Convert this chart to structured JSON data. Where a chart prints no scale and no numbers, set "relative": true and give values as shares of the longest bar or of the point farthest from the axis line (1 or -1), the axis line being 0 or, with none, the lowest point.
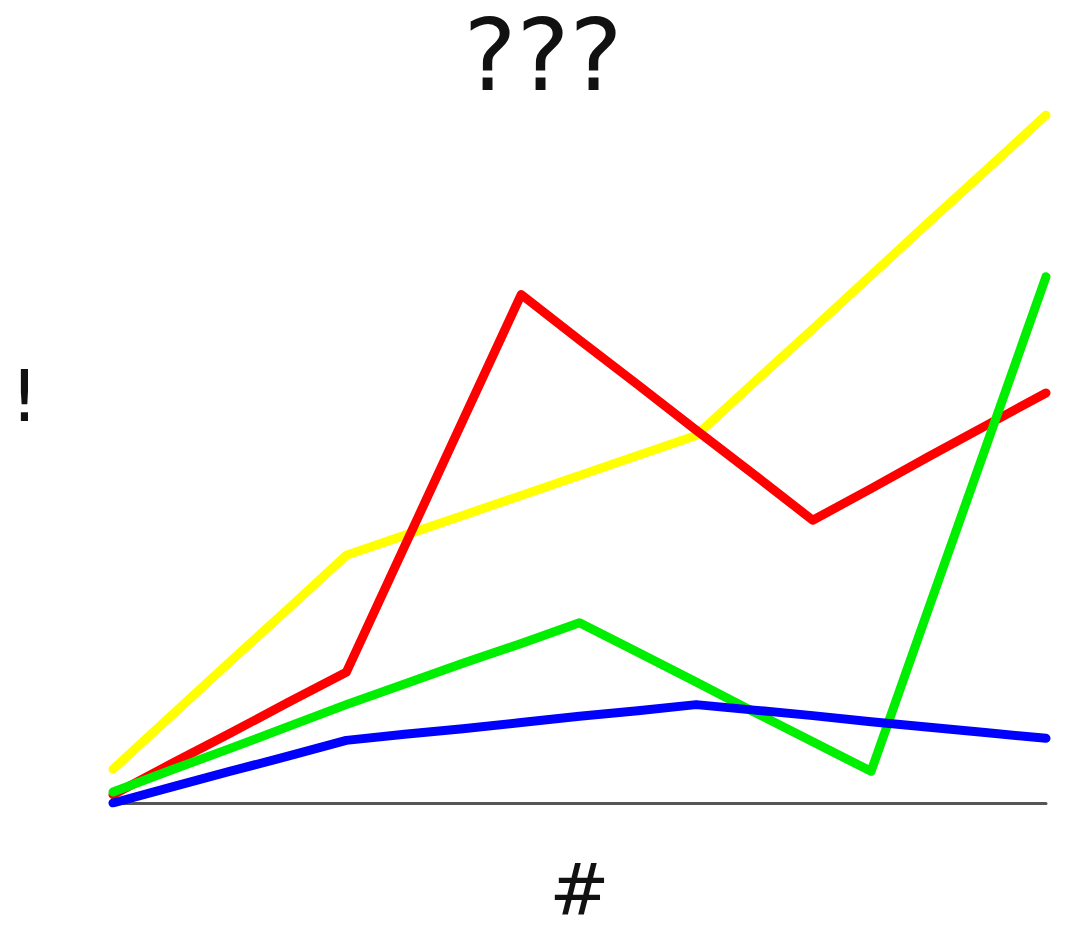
{
  "chart_data": {
    "type": "line",
    "title": "???",
    "xlabel": "#",
    "ylabel": "!",
    "relative": true,
    "marker": "none",
    "line_style": "solid",
    "categories": [
      null,
      null,
      null,
      null,
      null,
      null,
      null,
      null,
      null,
      null,
      null,
      null,
      null,
      null,
      null,
      null,
      null
    ],
    "series": [
      {
        "color": "#ffff00",
        "values": [
          0.049,
          0.127,
          0.205,
          0.282,
          0.36,
          0.389,
          0.418,
          0.447,
          0.476,
          0.505,
          0.534,
          0.612,
          0.689,
          0.767,
          0.845,
          0.922,
          1
        ]
      },
      {
        "color": "#ff0000",
        "values": [
          0.012,
          0.057,
          0.101,
          0.146,
          0.19,
          0.373,
          0.556,
          0.739,
          0.673,
          0.608,
          0.542,
          0.477,
          0.411,
          0.457,
          0.504,
          0.55,
          0.596
        ]
      },
      {
        "color": "#00ee00",
        "values": [
          0.016,
          0.048,
          0.079,
          0.111,
          0.143,
          0.173,
          0.203,
          0.232,
          0.262,
          0.219,
          0.176,
          0.132,
          0.089,
          0.046,
          0.286,
          0.525,
          0.765
        ]
      },
      {
        "color": "#0000ff",
        "values": [
          0,
          0.023,
          0.046,
          0.068,
          0.091,
          0.1,
          0.108,
          0.117,
          0.126,
          0.134,
          0.143,
          0.135,
          0.127,
          0.118,
          0.11,
          0.102,
          0.094
        ]
      }
    ]
  }
}
